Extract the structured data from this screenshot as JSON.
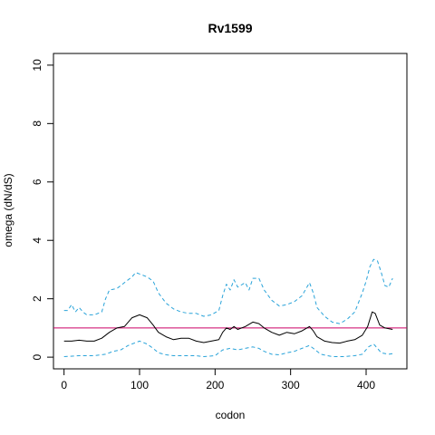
{
  "chart_data": {
    "type": "line",
    "title": "Rv1599",
    "xlabel": "codon",
    "ylabel": "omega (dN/dS)",
    "xlim": [
      -14,
      454
    ],
    "ylim": [
      -0.4,
      10.4
    ],
    "xticks": [
      0,
      100,
      200,
      300,
      400
    ],
    "yticks": [
      0,
      2,
      4,
      6,
      8,
      10
    ],
    "reference_line": {
      "y": 1,
      "color": "#cc0066"
    },
    "grid": false,
    "legend": "none",
    "series": [
      {
        "style": "solid",
        "color": "#000000",
        "points": [
          [
            0,
            0.55
          ],
          [
            10,
            0.55
          ],
          [
            20,
            0.58
          ],
          [
            30,
            0.55
          ],
          [
            40,
            0.55
          ],
          [
            50,
            0.65
          ],
          [
            60,
            0.85
          ],
          [
            70,
            1.0
          ],
          [
            80,
            1.05
          ],
          [
            90,
            1.35
          ],
          [
            100,
            1.45
          ],
          [
            110,
            1.35
          ],
          [
            118,
            1.1
          ],
          [
            125,
            0.85
          ],
          [
            135,
            0.7
          ],
          [
            145,
            0.6
          ],
          [
            155,
            0.65
          ],
          [
            165,
            0.65
          ],
          [
            175,
            0.55
          ],
          [
            185,
            0.5
          ],
          [
            195,
            0.55
          ],
          [
            205,
            0.6
          ],
          [
            210,
            0.85
          ],
          [
            215,
            1.0
          ],
          [
            220,
            0.95
          ],
          [
            225,
            1.05
          ],
          [
            230,
            0.95
          ],
          [
            240,
            1.05
          ],
          [
            250,
            1.2
          ],
          [
            258,
            1.15
          ],
          [
            265,
            1.0
          ],
          [
            275,
            0.85
          ],
          [
            285,
            0.75
          ],
          [
            295,
            0.85
          ],
          [
            305,
            0.8
          ],
          [
            315,
            0.9
          ],
          [
            325,
            1.05
          ],
          [
            330,
            0.9
          ],
          [
            335,
            0.7
          ],
          [
            345,
            0.55
          ],
          [
            355,
            0.5
          ],
          [
            365,
            0.48
          ],
          [
            375,
            0.55
          ],
          [
            385,
            0.6
          ],
          [
            395,
            0.75
          ],
          [
            402,
            1.05
          ],
          [
            408,
            1.55
          ],
          [
            412,
            1.5
          ],
          [
            418,
            1.1
          ],
          [
            425,
            1.0
          ],
          [
            435,
            0.95
          ]
        ]
      },
      {
        "style": "dashed",
        "color": "#29a3d9",
        "points": [
          [
            0,
            1.6
          ],
          [
            5,
            1.6
          ],
          [
            10,
            1.8
          ],
          [
            15,
            1.55
          ],
          [
            20,
            1.7
          ],
          [
            25,
            1.55
          ],
          [
            30,
            1.45
          ],
          [
            40,
            1.45
          ],
          [
            50,
            1.55
          ],
          [
            55,
            2.0
          ],
          [
            60,
            2.3
          ],
          [
            70,
            2.35
          ],
          [
            80,
            2.55
          ],
          [
            90,
            2.75
          ],
          [
            95,
            2.9
          ],
          [
            100,
            2.85
          ],
          [
            110,
            2.75
          ],
          [
            118,
            2.6
          ],
          [
            125,
            2.2
          ],
          [
            135,
            1.85
          ],
          [
            145,
            1.65
          ],
          [
            155,
            1.55
          ],
          [
            165,
            1.5
          ],
          [
            175,
            1.5
          ],
          [
            185,
            1.4
          ],
          [
            195,
            1.45
          ],
          [
            205,
            1.6
          ],
          [
            210,
            2.1
          ],
          [
            215,
            2.5
          ],
          [
            220,
            2.3
          ],
          [
            225,
            2.65
          ],
          [
            230,
            2.4
          ],
          [
            240,
            2.55
          ],
          [
            245,
            2.3
          ],
          [
            250,
            2.7
          ],
          [
            258,
            2.7
          ],
          [
            265,
            2.3
          ],
          [
            275,
            1.95
          ],
          [
            285,
            1.75
          ],
          [
            295,
            1.8
          ],
          [
            305,
            1.9
          ],
          [
            315,
            2.1
          ],
          [
            325,
            2.55
          ],
          [
            330,
            2.2
          ],
          [
            335,
            1.7
          ],
          [
            345,
            1.4
          ],
          [
            355,
            1.2
          ],
          [
            365,
            1.15
          ],
          [
            375,
            1.3
          ],
          [
            385,
            1.55
          ],
          [
            395,
            2.2
          ],
          [
            400,
            2.6
          ],
          [
            405,
            3.1
          ],
          [
            410,
            3.35
          ],
          [
            415,
            3.3
          ],
          [
            420,
            2.9
          ],
          [
            425,
            2.45
          ],
          [
            430,
            2.4
          ],
          [
            435,
            2.7
          ]
        ]
      },
      {
        "style": "dashed",
        "color": "#29a3d9",
        "points": [
          [
            0,
            0.02
          ],
          [
            20,
            0.05
          ],
          [
            40,
            0.05
          ],
          [
            55,
            0.1
          ],
          [
            65,
            0.2
          ],
          [
            75,
            0.25
          ],
          [
            85,
            0.4
          ],
          [
            95,
            0.5
          ],
          [
            100,
            0.55
          ],
          [
            110,
            0.45
          ],
          [
            118,
            0.3
          ],
          [
            125,
            0.15
          ],
          [
            135,
            0.08
          ],
          [
            145,
            0.05
          ],
          [
            160,
            0.05
          ],
          [
            175,
            0.05
          ],
          [
            185,
            0.02
          ],
          [
            200,
            0.05
          ],
          [
            210,
            0.25
          ],
          [
            220,
            0.3
          ],
          [
            230,
            0.25
          ],
          [
            240,
            0.3
          ],
          [
            250,
            0.35
          ],
          [
            258,
            0.3
          ],
          [
            265,
            0.2
          ],
          [
            275,
            0.1
          ],
          [
            285,
            0.08
          ],
          [
            295,
            0.15
          ],
          [
            305,
            0.2
          ],
          [
            315,
            0.3
          ],
          [
            325,
            0.4
          ],
          [
            330,
            0.3
          ],
          [
            340,
            0.1
          ],
          [
            355,
            0.02
          ],
          [
            370,
            0.02
          ],
          [
            385,
            0.05
          ],
          [
            395,
            0.1
          ],
          [
            403,
            0.35
          ],
          [
            410,
            0.45
          ],
          [
            415,
            0.3
          ],
          [
            420,
            0.15
          ],
          [
            430,
            0.1
          ],
          [
            435,
            0.12
          ]
        ]
      }
    ]
  }
}
